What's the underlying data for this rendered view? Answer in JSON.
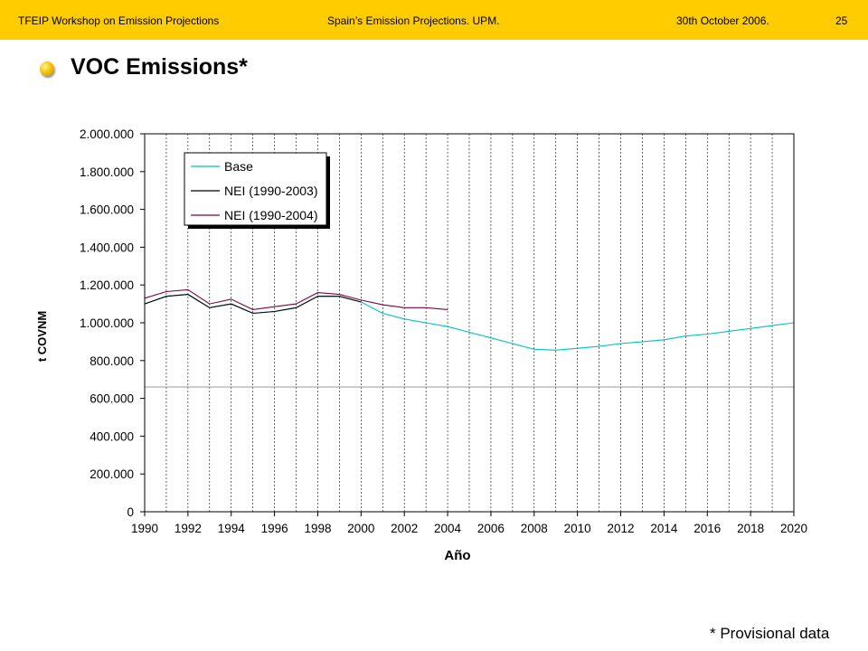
{
  "header": {
    "left": "TFEIP Workshop on Emission Projections",
    "center": "Spain’s Emission Projections. UPM.",
    "date": "30th October 2006.",
    "page": "25"
  },
  "slide": {
    "title": "VOC Emissions*",
    "footnote": "* Provisional data"
  },
  "colors": {
    "header_bg": "#ffcc00",
    "base": "#00c0c0",
    "nei_2003": "#000000",
    "nei_2004": "#800040",
    "reference_line": "#999999"
  },
  "chart_data": {
    "type": "line",
    "xlabel": "Año",
    "ylabel": "t COVNM",
    "xlim": [
      1990,
      2020
    ],
    "ylim": [
      0,
      2000000
    ],
    "x_ticks": [
      "1990",
      "1992",
      "1994",
      "1996",
      "1998",
      "2000",
      "2002",
      "2004",
      "2006",
      "2008",
      "2010",
      "2012",
      "2014",
      "2016",
      "2018",
      "2020"
    ],
    "y_ticks": [
      "0",
      "200.000",
      "400.000",
      "600.000",
      "800.000",
      "1.000.000",
      "1.200.000",
      "1.400.000",
      "1.600.000",
      "1.800.000",
      "2.000.000"
    ],
    "grid": "vertical",
    "legend_position": "top-left",
    "reference_line_y": 660000,
    "series": [
      {
        "name": "Base",
        "x": [
          1990,
          1991,
          1992,
          1993,
          1994,
          1995,
          1996,
          1997,
          1998,
          1999,
          2000,
          2001,
          2002,
          2003,
          2004,
          2005,
          2006,
          2007,
          2008,
          2009,
          2010,
          2011,
          2012,
          2013,
          2014,
          2015,
          2016,
          2017,
          2018,
          2019,
          2020
        ],
        "values": [
          1100000,
          1140000,
          1150000,
          1080000,
          1100000,
          1050000,
          1060000,
          1080000,
          1140000,
          1140000,
          1110000,
          1050000,
          1020000,
          1000000,
          980000,
          950000,
          920000,
          890000,
          860000,
          855000,
          865000,
          875000,
          890000,
          900000,
          910000,
          930000,
          940000,
          955000,
          970000,
          985000,
          1000000
        ]
      },
      {
        "name": "NEI (1990-2003)",
        "x": [
          1990,
          1991,
          1992,
          1993,
          1994,
          1995,
          1996,
          1997,
          1998,
          1999,
          2000
        ],
        "values": [
          1100000,
          1140000,
          1150000,
          1080000,
          1100000,
          1050000,
          1060000,
          1080000,
          1140000,
          1140000,
          1110000
        ]
      },
      {
        "name": "NEI (1990-2004)",
        "x": [
          1990,
          1991,
          1992,
          1993,
          1994,
          1995,
          1996,
          1997,
          1998,
          1999,
          2000,
          2001,
          2002,
          2003,
          2004
        ],
        "values": [
          1130000,
          1165000,
          1175000,
          1100000,
          1125000,
          1070000,
          1085000,
          1100000,
          1160000,
          1150000,
          1120000,
          1095000,
          1080000,
          1080000,
          1070000
        ]
      }
    ]
  }
}
